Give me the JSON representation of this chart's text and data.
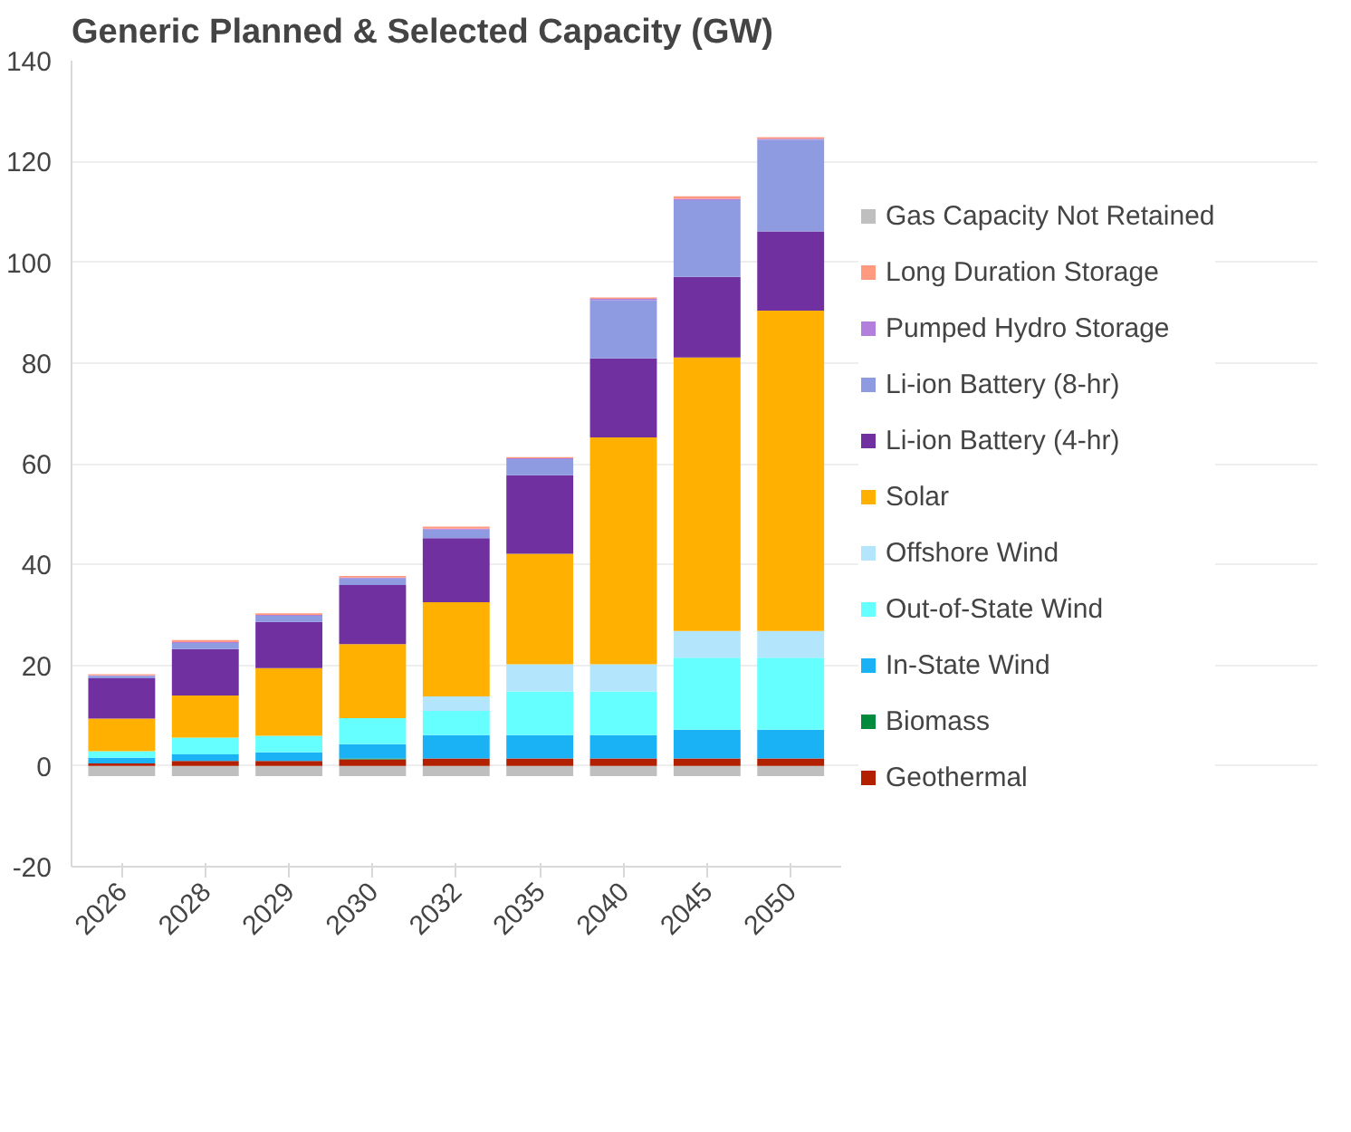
{
  "chart_data": {
    "type": "bar",
    "stacked": true,
    "title": "Generic Planned & Selected Capacity (GW)",
    "categories": [
      "2026",
      "2028",
      "2029",
      "2030",
      "2032",
      "2035",
      "2040",
      "2045",
      "2050"
    ],
    "series": [
      {
        "name": "Gas Capacity Not Retained",
        "color": "#bfbfbf",
        "values": [
          -2,
          -2,
          -2,
          -2,
          -2,
          -2,
          -2,
          -2,
          -2
        ]
      },
      {
        "name": "Geothermal",
        "color": "#b22000",
        "values": [
          0.5,
          1.0,
          1.0,
          1.3,
          1.5,
          1.5,
          1.5,
          1.5,
          1.5
        ]
      },
      {
        "name": "Biomass",
        "color": "#008a3e",
        "values": [
          0,
          0,
          0,
          0.2,
          0,
          0,
          0,
          0,
          0
        ]
      },
      {
        "name": "In-State Wind",
        "color": "#1ab2f5",
        "values": [
          1.1,
          1.3,
          1.7,
          2.8,
          4.6,
          4.6,
          4.6,
          5.7,
          5.7
        ]
      },
      {
        "name": "Out-of-State Wind",
        "color": "#66ffff",
        "values": [
          1.3,
          3.3,
          3.3,
          5.2,
          4.8,
          8.7,
          8.7,
          14.3,
          14.3
        ]
      },
      {
        "name": "Offshore Wind",
        "color": "#b3e5fc",
        "values": [
          0,
          0,
          0,
          0,
          2.9,
          5.4,
          5.4,
          5.3,
          5.3
        ]
      },
      {
        "name": "Solar",
        "color": "#ffb000",
        "values": [
          6.5,
          8.4,
          13.4,
          14.7,
          18.7,
          21.9,
          45.0,
          54.3,
          63.6
        ]
      },
      {
        "name": "Li-ion Battery (4-hr)",
        "color": "#7030a0",
        "values": [
          8.0,
          9.2,
          9.2,
          11.7,
          12.7,
          15.6,
          15.7,
          16.0,
          15.7
        ]
      },
      {
        "name": "Li-ion Battery (8-hr)",
        "color": "#8e9be0",
        "values": [
          0.5,
          1.2,
          1.2,
          1.3,
          1.7,
          3.2,
          11.6,
          15.2,
          18.2
        ]
      },
      {
        "name": "Pumped Hydro Storage",
        "color": "#b27fdc",
        "values": [
          0.1,
          0.2,
          0.2,
          0.2,
          0.2,
          0.2,
          0.2,
          0.3,
          0.2
        ]
      },
      {
        "name": "Long Duration Storage",
        "color": "#ff9980",
        "values": [
          0.2,
          0.4,
          0.3,
          0.3,
          0.4,
          0.2,
          0.3,
          0.5,
          0.3
        ]
      }
    ],
    "ylim": [
      -20,
      140
    ],
    "yticks": [
      -20,
      0,
      20,
      40,
      60,
      80,
      100,
      120,
      140
    ],
    "grid": "y",
    "legend": "right"
  }
}
